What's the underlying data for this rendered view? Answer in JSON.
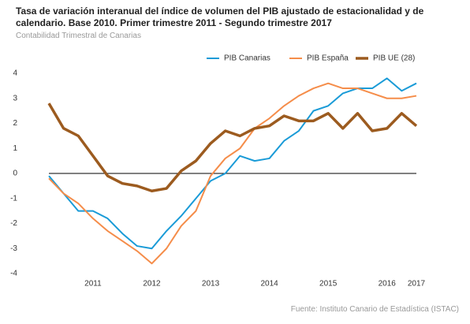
{
  "chart_data": {
    "type": "line",
    "title": "Tasa de variación interanual del índice de volumen del PIB ajustado de estacionalidad y de calendario. Base 2010. Primer trimestre 2011 - Segundo trimestre 2017",
    "subtitle": "Contabilidad Trimestral de Canarias",
    "source": "Fuente: Instituto Canario de Estadística (ISTAC)",
    "categories": [
      null,
      null,
      null,
      "2011",
      null,
      null,
      null,
      "2012",
      null,
      null,
      null,
      "2013",
      null,
      null,
      null,
      "2014",
      null,
      null,
      null,
      "2015",
      null,
      null,
      null,
      "2016",
      null,
      "2017"
    ],
    "series": [
      {
        "name": "PIB Canarias",
        "color": "#1a9bd7",
        "width": 2,
        "values": [
          -0.1,
          -0.8,
          -1.5,
          -1.5,
          -1.8,
          -2.4,
          -2.9,
          -3.0,
          -2.3,
          -1.7,
          -1.0,
          -0.3,
          0.0,
          0.7,
          0.5,
          0.6,
          1.3,
          1.7,
          2.5,
          2.7,
          3.2,
          3.4,
          3.4,
          3.8,
          3.3,
          3.6
        ]
      },
      {
        "name": "PIB España",
        "color": "#f58d4a",
        "width": 2,
        "values": [
          -0.2,
          -0.8,
          -1.2,
          -1.8,
          -2.3,
          -2.7,
          -3.1,
          -3.6,
          -3.0,
          -2.1,
          -1.5,
          -0.1,
          0.6,
          1.0,
          1.8,
          2.2,
          2.7,
          3.1,
          3.4,
          3.6,
          3.4,
          3.4,
          3.2,
          3.0,
          3.0,
          3.1
        ]
      },
      {
        "name": "PIB UE (28)",
        "color": "#9c5b1f",
        "width": 3.5,
        "values": [
          2.8,
          1.8,
          1.5,
          0.7,
          -0.1,
          -0.4,
          -0.5,
          -0.7,
          -0.6,
          0.1,
          0.5,
          1.2,
          1.7,
          1.5,
          1.8,
          1.9,
          2.3,
          2.1,
          2.1,
          2.4,
          1.8,
          2.4,
          1.7,
          1.8,
          2.4,
          1.9
        ]
      }
    ],
    "ylim": [
      -4,
      4
    ],
    "yticks": [
      -4,
      -3,
      -2,
      -1,
      0,
      1,
      2,
      3,
      4
    ],
    "legend": "top",
    "grid": false
  }
}
